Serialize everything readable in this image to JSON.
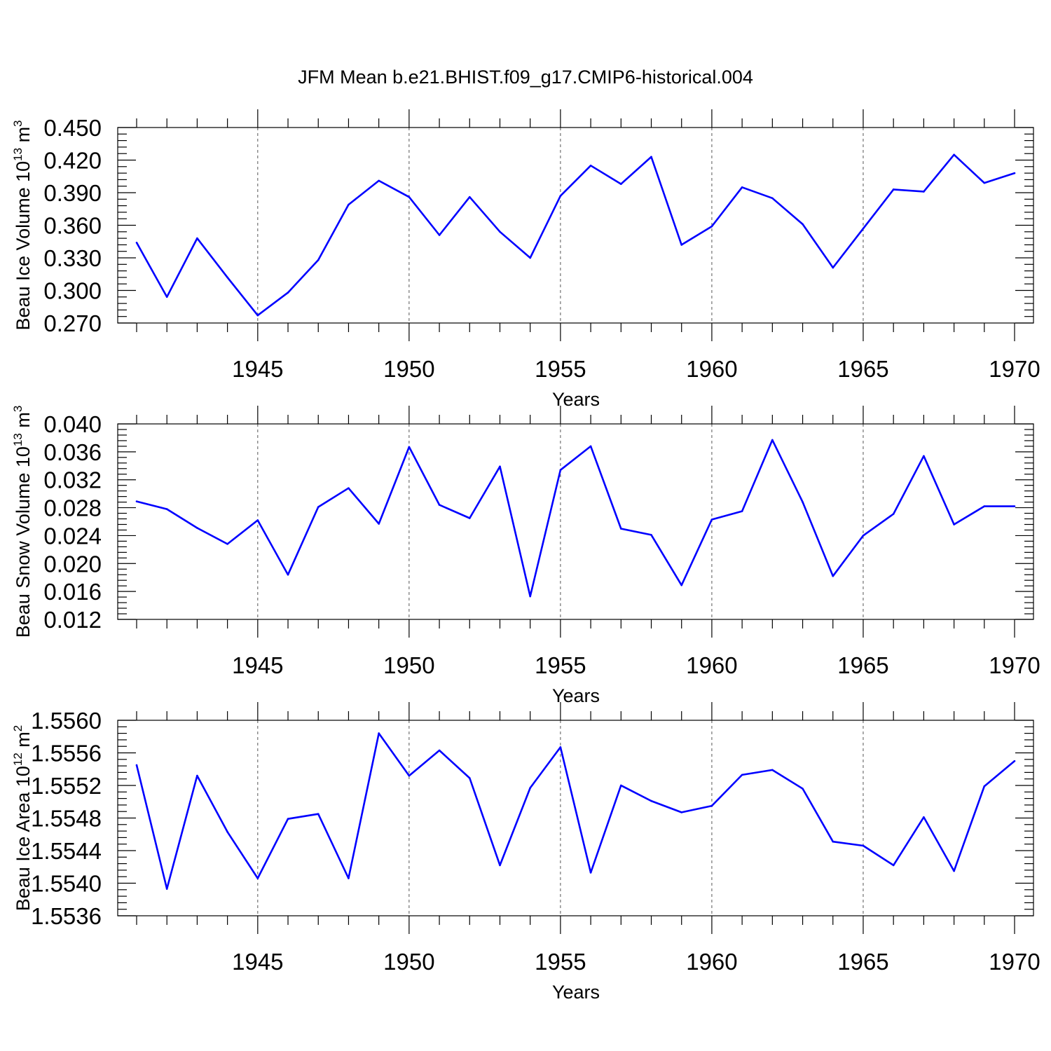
{
  "title": "JFM Mean b.e21.BHIST.f09_g17.CMIP6-historical.004",
  "colors": {
    "series": "#0000ff",
    "axis": "#000000",
    "grid": "#555555"
  },
  "chart_data": [
    {
      "type": "line",
      "ylabel_main": "Beau Ice Volume 10",
      "ylabel_exp": "13",
      "ylabel_unit": " m",
      "ylabel_unit_exp": "3",
      "xlabel": "Years",
      "xlim": [
        1941,
        1970
      ],
      "ylim": [
        0.27,
        0.45
      ],
      "yticks": [
        0.27,
        0.3,
        0.33,
        0.36,
        0.39,
        0.42,
        0.45
      ],
      "ytick_labels": [
        "0.270",
        "0.300",
        "0.330",
        "0.360",
        "0.390",
        "0.420",
        "0.450"
      ],
      "xticks": [
        1945,
        1950,
        1955,
        1960,
        1965,
        1970
      ],
      "xtick_labels": [
        "1945",
        "1950",
        "1955",
        "1960",
        "1965",
        "1970"
      ],
      "grid": "x dashed",
      "x": [
        1941,
        1942,
        1943,
        1944,
        1945,
        1946,
        1947,
        1948,
        1949,
        1950,
        1951,
        1952,
        1953,
        1954,
        1955,
        1956,
        1957,
        1958,
        1959,
        1960,
        1961,
        1962,
        1963,
        1964,
        1965,
        1966,
        1967,
        1968,
        1969,
        1970
      ],
      "values": [
        0.344,
        0.294,
        0.348,
        0.312,
        0.277,
        0.298,
        0.328,
        0.379,
        0.401,
        0.386,
        0.351,
        0.386,
        0.354,
        0.33,
        0.387,
        0.415,
        0.398,
        0.423,
        0.342,
        0.359,
        0.395,
        0.385,
        0.361,
        0.321,
        0.357,
        0.393,
        0.391,
        0.425,
        0.399,
        0.408
      ]
    },
    {
      "type": "line",
      "ylabel_main": "Beau Snow Volume 10",
      "ylabel_exp": "13",
      "ylabel_unit": " m",
      "ylabel_unit_exp": "3",
      "xlabel": "Years",
      "xlim": [
        1941,
        1970
      ],
      "ylim": [
        0.012,
        0.04
      ],
      "yticks": [
        0.012,
        0.016,
        0.02,
        0.024,
        0.028,
        0.032,
        0.036,
        0.04
      ],
      "ytick_labels": [
        "0.012",
        "0.016",
        "0.020",
        "0.024",
        "0.028",
        "0.032",
        "0.036",
        "0.040"
      ],
      "xticks": [
        1945,
        1950,
        1955,
        1960,
        1965,
        1970
      ],
      "xtick_labels": [
        "1945",
        "1950",
        "1955",
        "1960",
        "1965",
        "1970"
      ],
      "grid": "x dashed",
      "x": [
        1941,
        1942,
        1943,
        1944,
        1945,
        1946,
        1947,
        1948,
        1949,
        1950,
        1951,
        1952,
        1953,
        1954,
        1955,
        1956,
        1957,
        1958,
        1959,
        1960,
        1961,
        1962,
        1963,
        1964,
        1965,
        1966,
        1967,
        1968,
        1969,
        1970
      ],
      "values": [
        0.0289,
        0.0278,
        0.0251,
        0.0228,
        0.0262,
        0.0184,
        0.0281,
        0.0308,
        0.0257,
        0.0367,
        0.0284,
        0.0265,
        0.0339,
        0.0153,
        0.0334,
        0.0368,
        0.025,
        0.0241,
        0.0169,
        0.0263,
        0.0275,
        0.0377,
        0.0288,
        0.0182,
        0.024,
        0.0271,
        0.0354,
        0.0256,
        0.0282,
        0.0282
      ]
    },
    {
      "type": "line",
      "ylabel_main": "Beau Ice Area 10",
      "ylabel_exp": "12",
      "ylabel_unit": " m",
      "ylabel_unit_exp": "2",
      "xlabel": "Years",
      "xlim": [
        1941,
        1970
      ],
      "ylim": [
        1.5536,
        1.556
      ],
      "yticks": [
        1.5536,
        1.554,
        1.5544,
        1.5548,
        1.5552,
        1.5556,
        1.556
      ],
      "ytick_labels": [
        "1.5536",
        "1.5540",
        "1.5544",
        "1.5548",
        "1.5552",
        "1.5556",
        "1.5560"
      ],
      "xticks": [
        1945,
        1950,
        1955,
        1960,
        1965,
        1970
      ],
      "xtick_labels": [
        "1945",
        "1950",
        "1955",
        "1960",
        "1965",
        "1970"
      ],
      "grid": "x dashed",
      "x": [
        1941,
        1942,
        1943,
        1944,
        1945,
        1946,
        1947,
        1948,
        1949,
        1950,
        1951,
        1952,
        1953,
        1954,
        1955,
        1956,
        1957,
        1958,
        1959,
        1960,
        1961,
        1962,
        1963,
        1964,
        1965,
        1966,
        1967,
        1968,
        1969,
        1970
      ],
      "values": [
        1.55545,
        1.55393,
        1.55532,
        1.55463,
        1.55406,
        1.55479,
        1.55485,
        1.55406,
        1.55584,
        1.55532,
        1.55563,
        1.55529,
        1.55422,
        1.55517,
        1.55567,
        1.55413,
        1.5552,
        1.55501,
        1.55487,
        1.55495,
        1.55533,
        1.55539,
        1.55516,
        1.55451,
        1.55446,
        1.55422,
        1.55481,
        1.55415,
        1.55519,
        1.5555
      ]
    }
  ]
}
